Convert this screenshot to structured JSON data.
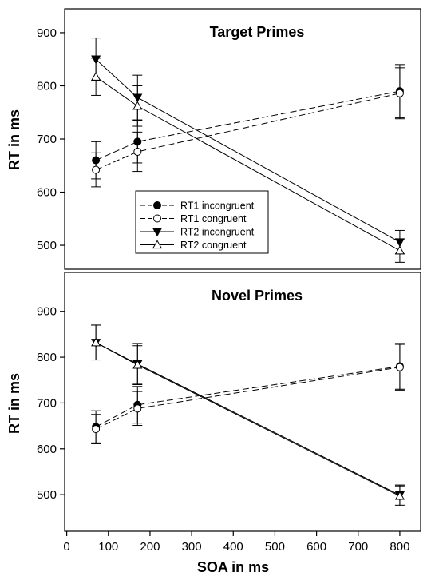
{
  "chart_data": [
    {
      "type": "line",
      "title": "Target Primes",
      "xlabel": "",
      "ylabel": "RT in ms",
      "xlim": [
        -5,
        850
      ],
      "ylim": [
        455,
        945
      ],
      "yticks": [
        500,
        600,
        700,
        800,
        900
      ],
      "series": [
        {
          "name": "RT1 incongruent",
          "x": [
            70,
            170,
            800
          ],
          "y": [
            660,
            695,
            790
          ],
          "err": [
            35,
            40,
            50
          ],
          "marker": "filled-circle",
          "linestyle": "dashed"
        },
        {
          "name": "RT1 congruent",
          "x": [
            70,
            170,
            800
          ],
          "y": [
            642,
            676,
            786
          ],
          "err": [
            32,
            37,
            48
          ],
          "marker": "open-circle",
          "linestyle": "dashed"
        },
        {
          "name": "RT2 incongruent",
          "x": [
            70,
            170,
            800
          ],
          "y": [
            850,
            778,
            506
          ],
          "err": [
            40,
            42,
            22
          ],
          "marker": "filled-triangle-down",
          "linestyle": "solid"
        },
        {
          "name": "RT2 congruent",
          "x": [
            70,
            170,
            800
          ],
          "y": [
            817,
            762,
            490
          ],
          "err": [
            35,
            38,
            22
          ],
          "marker": "open-triangle-up",
          "linestyle": "solid"
        }
      ]
    },
    {
      "type": "line",
      "title": "Novel Primes",
      "xlabel": "SOA in ms",
      "ylabel": "RT in ms",
      "xlim": [
        -5,
        850
      ],
      "ylim": [
        420,
        985
      ],
      "yticks": [
        500,
        600,
        700,
        800,
        900
      ],
      "xticks": [
        0,
        100,
        200,
        300,
        400,
        500,
        600,
        700,
        800
      ],
      "series": [
        {
          "name": "RT1 incongruent",
          "x": [
            70,
            170,
            800
          ],
          "y": [
            648,
            696,
            780
          ],
          "err": [
            35,
            40,
            50
          ],
          "marker": "filled-circle",
          "linestyle": "dashed"
        },
        {
          "name": "RT1 congruent",
          "x": [
            70,
            170,
            800
          ],
          "y": [
            643,
            688,
            778
          ],
          "err": [
            32,
            37,
            50
          ],
          "marker": "open-circle",
          "linestyle": "dashed"
        },
        {
          "name": "RT2 incongruent",
          "x": [
            70,
            170,
            800
          ],
          "y": [
            832,
            785,
            499
          ],
          "err": [
            38,
            45,
            22
          ],
          "marker": "filled-triangle-down",
          "linestyle": "solid"
        },
        {
          "name": "RT2 congruent",
          "x": [
            70,
            170,
            800
          ],
          "y": [
            832,
            783,
            497
          ],
          "err": [
            38,
            42,
            22
          ],
          "marker": "open-triangle-up",
          "linestyle": "solid"
        }
      ]
    }
  ]
}
